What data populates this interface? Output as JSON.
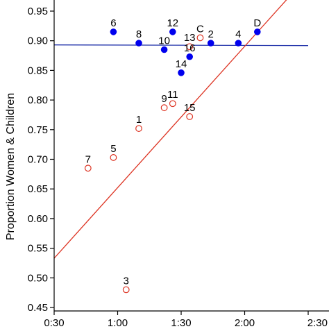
{
  "chart_data": {
    "type": "scatter",
    "title": "",
    "xlabel": "",
    "ylabel": "Proportion Women & Children",
    "xlim": [
      30,
      150
    ],
    "ylim": [
      0.45,
      0.97
    ],
    "x_ticks": [
      30,
      60,
      90,
      120,
      150
    ],
    "x_tick_labels": [
      "0:30",
      "1:00",
      "1:30",
      "2:00",
      "2:30"
    ],
    "y_ticks": [
      0.45,
      0.5,
      0.55,
      0.6,
      0.65,
      0.7,
      0.75,
      0.8,
      0.85,
      0.9,
      0.95
    ],
    "y_tick_labels": [
      "0.45",
      "0.50",
      "0.55",
      "0.60",
      "0.65",
      "0.70",
      "0.75",
      "0.80",
      "0.85",
      "0.90",
      "0.95"
    ],
    "grid": false,
    "colors": {
      "filled_series": "#0000ee",
      "open_series": "#dd3322",
      "horizontal_line": "#2233aa",
      "regression_line": "#dd3322",
      "axis": "#000000"
    },
    "series": [
      {
        "marker": "filled-circle",
        "color": "#0000ee",
        "points": [
          {
            "label": "6",
            "x": 58,
            "y": 0.915
          },
          {
            "label": "8",
            "x": 70,
            "y": 0.896
          },
          {
            "label": "10",
            "x": 82,
            "y": 0.885
          },
          {
            "label": "12",
            "x": 86,
            "y": 0.915
          },
          {
            "label": "14",
            "x": 90,
            "y": 0.846
          },
          {
            "label": "16",
            "x": 94,
            "y": 0.873
          },
          {
            "label": "2",
            "x": 104,
            "y": 0.896
          },
          {
            "label": "4",
            "x": 117,
            "y": 0.896
          },
          {
            "label": "D",
            "x": 126,
            "y": 0.915
          }
        ]
      },
      {
        "marker": "open-circle",
        "color": "#dd3322",
        "points": [
          {
            "label": "7",
            "x": 46,
            "y": 0.685
          },
          {
            "label": "5",
            "x": 58,
            "y": 0.703
          },
          {
            "label": "3",
            "x": 64,
            "y": 0.48
          },
          {
            "label": "1",
            "x": 70,
            "y": 0.752
          },
          {
            "label": "9",
            "x": 82,
            "y": 0.787
          },
          {
            "label": "11",
            "x": 86,
            "y": 0.794
          },
          {
            "label": "15",
            "x": 94,
            "y": 0.772
          },
          {
            "label": "13",
            "x": 94,
            "y": 0.89
          },
          {
            "label": "C",
            "x": 99,
            "y": 0.905
          }
        ]
      }
    ],
    "lines": [
      {
        "kind": "horizontal",
        "color": "#2233aa",
        "y": 0.893
      },
      {
        "kind": "regression",
        "color": "#dd3322",
        "x1": 30,
        "y1": 0.533,
        "x2": 140,
        "y2": 0.97
      }
    ]
  }
}
